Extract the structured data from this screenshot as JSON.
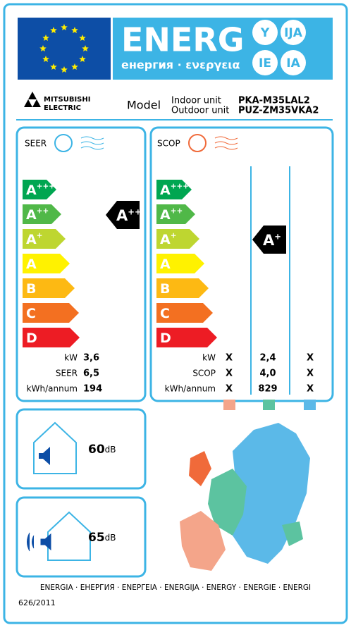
{
  "header": {
    "title": "ENERG",
    "subtitle": "енергия · ενεργεια",
    "suffixes": [
      "Y",
      "IJA",
      "IE",
      "IA"
    ]
  },
  "brand": {
    "line1": "MITSUBISHI",
    "line2": "ELECTRIC"
  },
  "model": {
    "label": "Model",
    "indoor_label": "Indoor unit",
    "outdoor_label": "Outdoor unit",
    "indoor": "PKA-M35LAL2",
    "outdoor": "PUZ-ZM35VKA2"
  },
  "classes": [
    {
      "letter": "A",
      "sup": "+++"
    },
    {
      "letter": "A",
      "sup": "++"
    },
    {
      "letter": "A",
      "sup": "+"
    },
    {
      "letter": "A"
    },
    {
      "letter": "B"
    },
    {
      "letter": "C"
    },
    {
      "letter": "D"
    }
  ],
  "cooling": {
    "label": "SEER",
    "rating": {
      "letter": "A",
      "sup": "++"
    },
    "rows": [
      {
        "label": "kW",
        "value": "3,6"
      },
      {
        "label": "SEER",
        "value": "6,5"
      },
      {
        "label": "kWh/annum",
        "value": "194"
      }
    ]
  },
  "heating": {
    "label": "SCOP",
    "rating": {
      "letter": "A",
      "sup": "+"
    },
    "rows": [
      {
        "label": "kW",
        "values": [
          "X",
          "2,4",
          "X"
        ]
      },
      {
        "label": "SCOP",
        "values": [
          "X",
          "4,0",
          "X"
        ]
      },
      {
        "label": "kWh/annum",
        "values": [
          "X",
          "829",
          "X"
        ]
      }
    ]
  },
  "noise": {
    "indoor": {
      "value": "60",
      "unit": "dB"
    },
    "outdoor": {
      "value": "65",
      "unit": "dB"
    }
  },
  "footer": {
    "languages": "ENERGIA · ЕНЕРГИЯ · ΕΝΕΡΓΕΙΑ · ENERGIJA · ENERGY · ENERGIE · ENERGI",
    "regulation": "626/2011"
  }
}
